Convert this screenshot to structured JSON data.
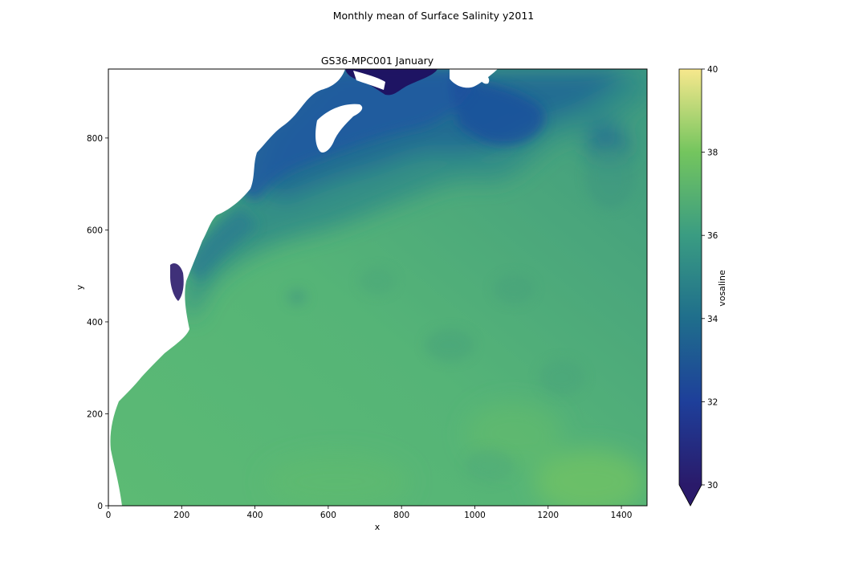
{
  "figure": {
    "suptitle": "Monthly mean of Surface Salinity y2011"
  },
  "chart_data": {
    "type": "heatmap",
    "title": "GS36-MPC001 January",
    "xlabel": "x",
    "ylabel": "y",
    "xlim": [
      0,
      1470
    ],
    "ylim": [
      0,
      950
    ],
    "xticks": [
      0,
      200,
      400,
      600,
      800,
      1000,
      1200,
      1400
    ],
    "yticks": [
      0,
      200,
      400,
      600,
      800
    ],
    "colorbar": {
      "label": "vosaline",
      "vmin": 30,
      "vmax": 40,
      "ticks": [
        30,
        32,
        34,
        36,
        38,
        40
      ],
      "extend": "min",
      "colormap": "haline",
      "stops": [
        "#2a1a6a",
        "#1e3f9a",
        "#1f6e8c",
        "#2f8e8a",
        "#4fae78",
        "#7dc85b",
        "#f7e88d"
      ]
    },
    "fields": {
      "open_ocean_typical": 36.4,
      "gulf_of_maine_shelf_typical": 32.5,
      "scotian_shelf_typical": 32.0,
      "gulf_of_st_lawrence_min": 30,
      "southeast_max": 37.2,
      "land_mask": "white"
    }
  }
}
